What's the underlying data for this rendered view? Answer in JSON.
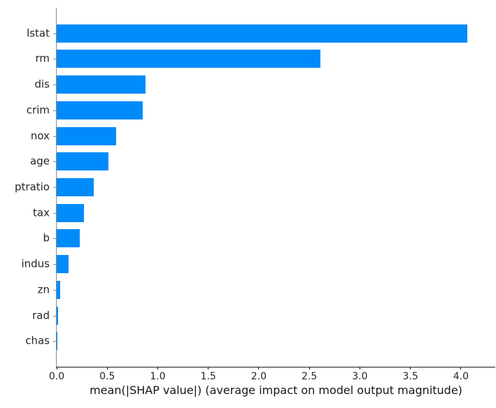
{
  "chart_data": {
    "type": "bar",
    "orientation": "horizontal",
    "title": "",
    "xlabel": "mean(|SHAP value|) (average impact on model output magnitude)",
    "ylabel": "",
    "categories": [
      "lstat",
      "rm",
      "dis",
      "crim",
      "nox",
      "age",
      "ptratio",
      "tax",
      "b",
      "indus",
      "zn",
      "rad",
      "chas"
    ],
    "values": [
      4.06,
      2.61,
      0.88,
      0.85,
      0.59,
      0.51,
      0.37,
      0.27,
      0.23,
      0.12,
      0.035,
      0.014,
      0.007
    ],
    "xlim": [
      0,
      4.34
    ],
    "xticks": [
      0.0,
      0.5,
      1.0,
      1.5,
      2.0,
      2.5,
      3.0,
      3.5,
      4.0
    ],
    "xtick_labels": [
      "0.0",
      "0.5",
      "1.0",
      "1.5",
      "2.0",
      "2.5",
      "3.0",
      "3.5",
      "4.0"
    ],
    "grid": false,
    "legend": null,
    "bar_color": "#008bfb"
  },
  "colors": {
    "bar": "#008bfb",
    "spine_left": "#8a8a8a",
    "spine_bottom": "#161616",
    "text": "#262626",
    "background": "#ffffff"
  }
}
